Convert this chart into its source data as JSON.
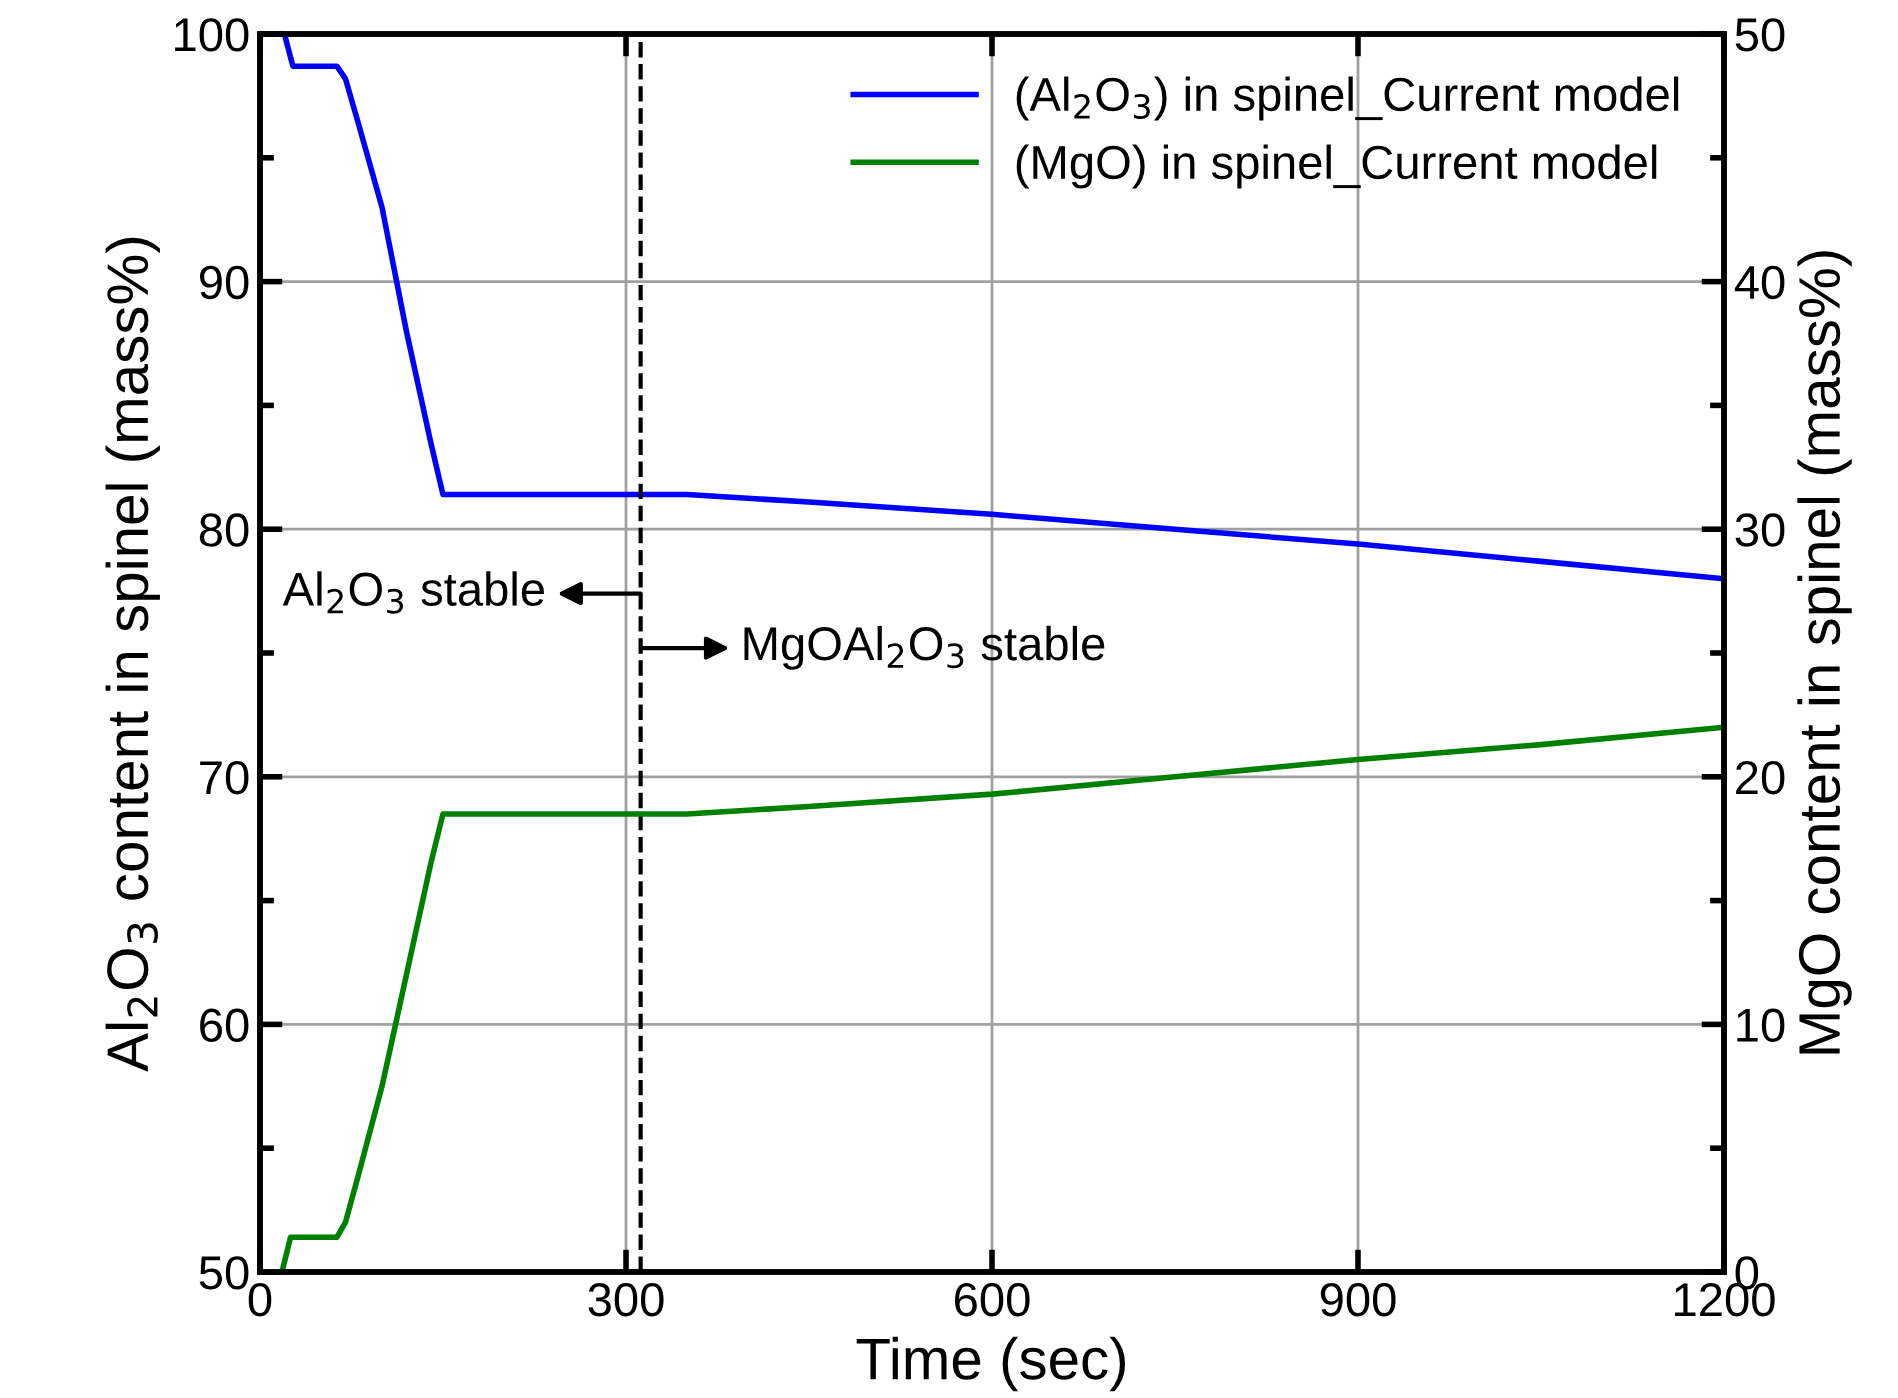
{
  "chart_data": {
    "type": "line",
    "xlabel": "Time (sec)",
    "ylabel": "Al$_{2}$O$_{3}$ content in spinel (mass%)",
    "y2label": "MgO content in spinel (mass%)",
    "xlim": [
      0,
      1200
    ],
    "xticks": [
      0,
      300,
      600,
      900,
      1200
    ],
    "ylim": [
      50,
      100
    ],
    "yticks": [
      50,
      60,
      70,
      80,
      90,
      100
    ],
    "y2lim": [
      0,
      50
    ],
    "y2ticks": [
      0,
      10,
      20,
      30,
      40,
      50
    ],
    "grid": true,
    "legend": "top right",
    "marker": "none",
    "line_style": "solid",
    "series": [
      {
        "name": "(Al$_{2}$O$_{3}$) in spinel_Current model",
        "color": "#0000ff",
        "x": [
          0,
          20,
          27,
          63,
          70,
          80,
          100,
          120,
          140,
          150,
          350,
          450,
          600,
          750,
          900,
          1050,
          1200
        ],
        "values": [
          100,
          100,
          98.7,
          98.7,
          98.2,
          96.5,
          93,
          88,
          83.5,
          81.4,
          81.4,
          81.1,
          80.6,
          80,
          79.4,
          78.7,
          78
        ]
      },
      {
        "name": "(MgO) in spinel_Current model",
        "color": "#008000",
        "axis": "y2",
        "x": [
          0,
          18,
          25,
          63,
          70,
          80,
          100,
          120,
          140,
          150,
          350,
          450,
          600,
          750,
          900,
          1050,
          1200
        ],
        "values": [
          0,
          0,
          1.4,
          1.4,
          2,
          3.8,
          7.5,
          12,
          16.5,
          18.5,
          18.5,
          18.8,
          19.3,
          20,
          20.7,
          21.3,
          22
        ]
      }
    ],
    "ref_lines": [
      {
        "axis": "x",
        "value": 312,
        "line_style": "dashed",
        "color": "#000000"
      }
    ],
    "annotations": [
      {
        "text": "Al$_{2}$O$_{3}$ stable",
        "x": 312,
        "y": 77.4
      },
      {
        "text": "MgOAl$_{2}$O$_{3}$ stable",
        "x": 312,
        "y": 75.2
      }
    ]
  }
}
